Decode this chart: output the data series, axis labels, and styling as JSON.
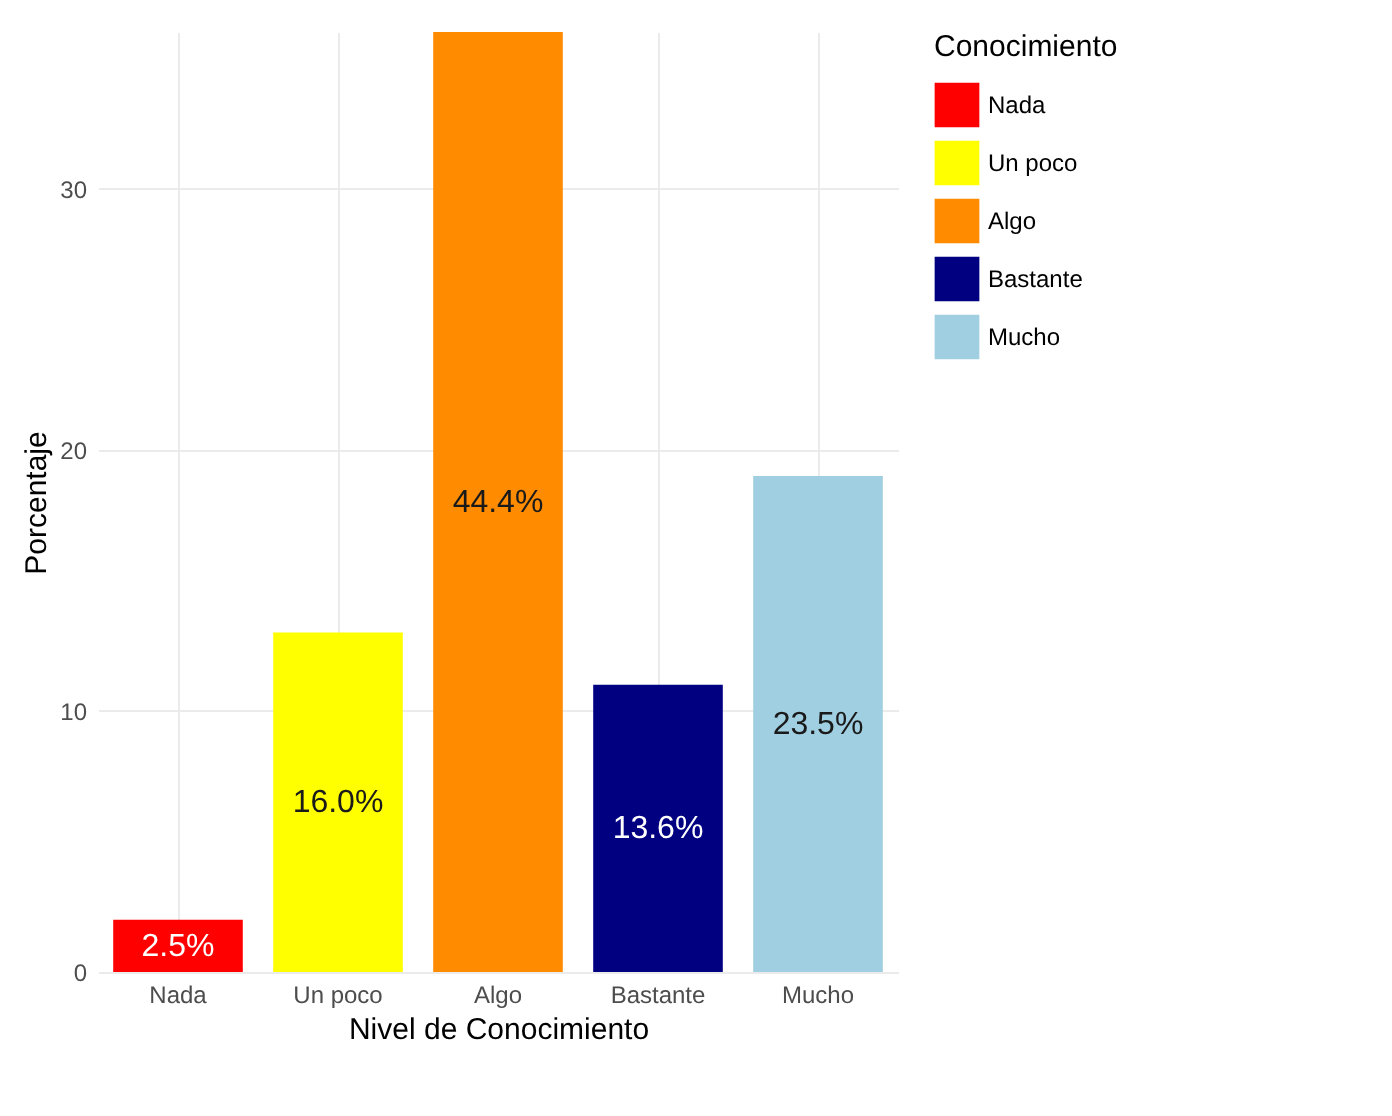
{
  "chart_data": {
    "type": "bar",
    "stacked": true,
    "xlabel": "Nivel de Conocimiento",
    "ylabel": "Porcentaje",
    "legend_title": "Conocimiento",
    "categories": [
      "Nada",
      "Un poco",
      "Algo",
      "Bastante",
      "Mucho"
    ],
    "series": [
      {
        "name": "Nada",
        "color": "#ff0000",
        "values": [
          2,
          null,
          null,
          null,
          null
        ]
      },
      {
        "name": "Un poco",
        "color": "#ffff00",
        "values": [
          null,
          13,
          null,
          null,
          null
        ]
      },
      {
        "name": "Algo",
        "color": "#ff8c00",
        "values": [
          null,
          null,
          36,
          null,
          null
        ]
      },
      {
        "name": "Bastante",
        "color": "#000080",
        "values": [
          null,
          null,
          null,
          11,
          null
        ]
      },
      {
        "name": "Mucho",
        "color": "#9fcfe0",
        "values": [
          null,
          null,
          null,
          null,
          19
        ]
      }
    ],
    "annotations": [
      "2.5%",
      "16.0%",
      "44.4%",
      "13.6%",
      "23.5%"
    ],
    "ylim": [
      0,
      36
    ],
    "yticks": [
      0,
      10,
      20,
      30
    ],
    "grid": true,
    "legend": "right"
  }
}
